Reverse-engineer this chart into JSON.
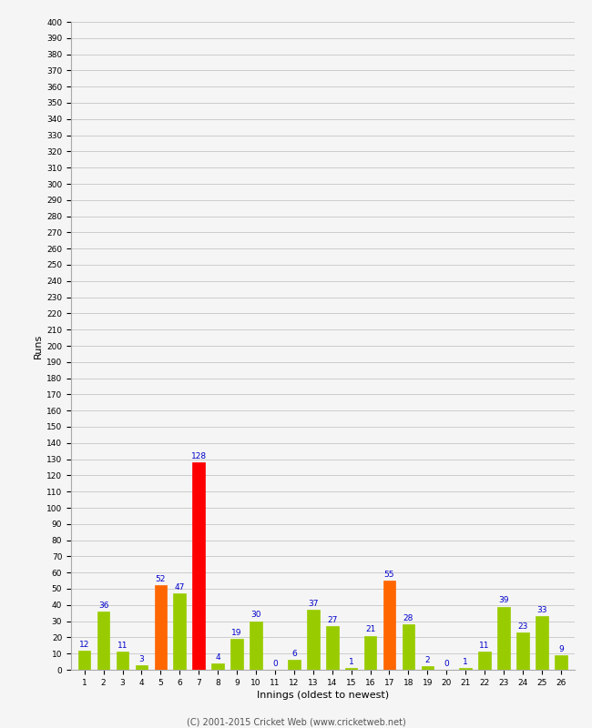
{
  "xlabel": "Innings (oldest to newest)",
  "ylabel": "Runs",
  "footer": "(C) 2001-2015 Cricket Web (www.cricketweb.net)",
  "values": [
    12,
    36,
    11,
    3,
    52,
    47,
    128,
    4,
    19,
    30,
    0,
    6,
    37,
    27,
    1,
    21,
    55,
    28,
    2,
    0,
    1,
    11,
    39,
    23,
    33,
    9
  ],
  "colors": [
    "#99cc00",
    "#99cc00",
    "#99cc00",
    "#99cc00",
    "#ff6600",
    "#99cc00",
    "#ff0000",
    "#99cc00",
    "#99cc00",
    "#99cc00",
    "#99cc00",
    "#99cc00",
    "#99cc00",
    "#99cc00",
    "#99cc00",
    "#99cc00",
    "#ff6600",
    "#99cc00",
    "#99cc00",
    "#99cc00",
    "#99cc00",
    "#99cc00",
    "#99cc00",
    "#99cc00",
    "#99cc00",
    "#99cc00"
  ],
  "x_labels": [
    "1",
    "2",
    "3",
    "4",
    "5",
    "6",
    "7",
    "8",
    "9",
    "10",
    "11",
    "12",
    "13",
    "14",
    "15",
    "16",
    "17",
    "18",
    "19",
    "20",
    "21",
    "22",
    "23",
    "24",
    "25",
    "26"
  ],
  "ylim": [
    0,
    400
  ],
  "yticks": [
    0,
    10,
    20,
    30,
    40,
    50,
    60,
    70,
    80,
    90,
    100,
    110,
    120,
    130,
    140,
    150,
    160,
    170,
    180,
    190,
    200,
    210,
    220,
    230,
    240,
    250,
    260,
    270,
    280,
    290,
    300,
    310,
    320,
    330,
    340,
    350,
    360,
    370,
    380,
    390,
    400
  ],
  "background_color": "#f5f5f5",
  "grid_color": "#cccccc",
  "label_color": "#0000cc",
  "bar_width": 0.65,
  "fig_width": 6.5,
  "fig_height": 8.0,
  "dpi": 100
}
